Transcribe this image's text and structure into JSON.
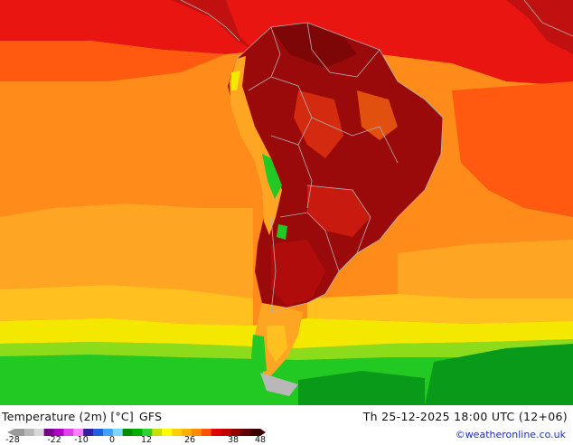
{
  "map": {
    "title": "Temperature (2m) [°C]",
    "model": "GFS",
    "datetime": "Th 25-12-2025 18:00 UTC (12+06)",
    "credit": "©weatheronline.co.uk"
  },
  "legend": {
    "labels": [
      "-28",
      "-22",
      "-10",
      "0",
      "12",
      "26",
      "38",
      "48"
    ],
    "colors": [
      "#9a9a9a",
      "#b8b8b8",
      "#d8d8d8",
      "#7a0090",
      "#b000c8",
      "#e040e8",
      "#ff80ff",
      "#3020a0",
      "#2060e0",
      "#40a0ff",
      "#80d8ff",
      "#009000",
      "#00b000",
      "#30d030",
      "#c8e000",
      "#ffff00",
      "#ffd000",
      "#ffb000",
      "#ff8c00",
      "#ff5000",
      "#e00000",
      "#c00000",
      "#900000",
      "#600000",
      "#3a0000"
    ]
  },
  "colors": {
    "deep_red": "#9b0a0a",
    "red": "#e81510",
    "orange_red": "#ff5a10",
    "orange": "#ff8c1a",
    "light_orange": "#ffa524",
    "yellow_orange": "#ffc020",
    "yellow": "#f5e800",
    "light_green": "#8ddc1c",
    "green": "#22c922",
    "dark_green": "#0a9a1a",
    "border": "#b0b0b0"
  }
}
